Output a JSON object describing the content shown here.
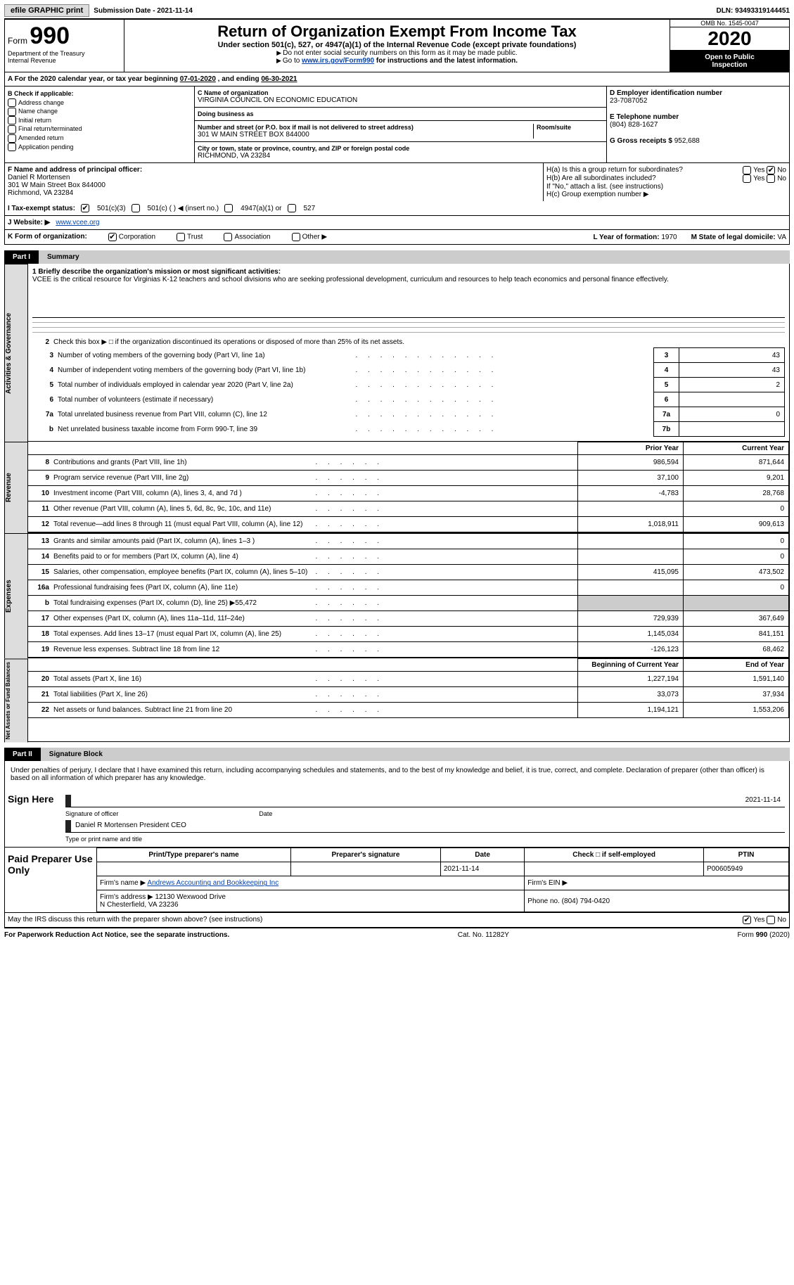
{
  "topbar": {
    "efile": "efile GRAPHIC print",
    "submission": "Submission Date - 2021-11-14",
    "dln": "DLN: 93493319144451"
  },
  "header": {
    "form_word": "Form",
    "form_no": "990",
    "dept1": "Department of the Treasury",
    "dept2": "Internal Revenue",
    "title": "Return of Organization Exempt From Income Tax",
    "subtitle": "Under section 501(c), 527, or 4947(a)(1) of the Internal Revenue Code (except private foundations)",
    "instr1": "Do not enter social security numbers on this form as it may be made public.",
    "instr2a": "Go to ",
    "instr2_link": "www.irs.gov/Form990",
    "instr2b": " for instructions and the latest information.",
    "omb": "OMB No. 1545-0047",
    "year": "2020",
    "open1": "Open to Public",
    "open2": "Inspection"
  },
  "period": {
    "label": "A For the 2020 calendar year, or tax year beginning ",
    "begin": "07-01-2020",
    "mid": " , and ending ",
    "end": "06-30-2021"
  },
  "boxB": {
    "title": "B Check if applicable:",
    "items": [
      "Address change",
      "Name change",
      "Initial return",
      "Final return/terminated",
      "Amended return",
      "Application pending"
    ]
  },
  "boxC": {
    "c_label": "C Name of organization",
    "org": "VIRGINIA COUNCIL ON ECONOMIC EDUCATION",
    "dba_label": "Doing business as",
    "dba": "",
    "addr_label": "Number and street (or P.O. box if mail is not delivered to street address)",
    "room_label": "Room/suite",
    "addr": "301 W MAIN STREET BOX 844000",
    "city_label": "City or town, state or province, country, and ZIP or foreign postal code",
    "city": "RICHMOND, VA  23284"
  },
  "boxD": {
    "label": "D Employer identification number",
    "ein": "23-7087052",
    "e_label": "E Telephone number",
    "phone": "(804) 828-1627",
    "g_label": "G Gross receipts $",
    "gross": "952,688"
  },
  "boxF": {
    "label": "F Name and address of principal officer:",
    "name": "Daniel R Mortensen",
    "addr1": "301 W Main Street Box 844000",
    "addr2": "Richmond, VA  23284"
  },
  "boxH": {
    "ha": "H(a)  Is this a group return for subordinates?",
    "hb": "H(b)  Are all subordinates included?",
    "hb_note": "If \"No,\" attach a list. (see instructions)",
    "hc": "H(c)  Group exemption number ▶",
    "yes": "Yes",
    "no": "No"
  },
  "taxI": {
    "label": "I  Tax-exempt status:",
    "opt1": "501(c)(3)",
    "opt2": "501(c) (  ) ◀ (insert no.)",
    "opt3": "4947(a)(1) or",
    "opt4": "527"
  },
  "webJ": {
    "label": "J  Website: ▶",
    "url": "www.vcee.org"
  },
  "rowK": {
    "label": "K Form of organization:",
    "opts": [
      "Corporation",
      "Trust",
      "Association",
      "Other ▶"
    ],
    "l_label": "L Year of formation:",
    "l_val": "1970",
    "m_label": "M State of legal domicile:",
    "m_val": "VA"
  },
  "part1": {
    "tag": "Part I",
    "title": "Summary",
    "q1_label": "1  Briefly describe the organization's mission or most significant activities:",
    "mission": "VCEE is the critical resource for Virginias K-12 teachers and school divisions who are seeking professional development, curriculum and resources to help teach economics and personal finance effectively.",
    "q2": "Check this box ▶ □ if the organization discontinued its operations or disposed of more than 25% of its net assets.",
    "rows_gov": [
      {
        "n": "3",
        "t": "Number of voting members of the governing body (Part VI, line 1a)",
        "b": "3",
        "v": "43"
      },
      {
        "n": "4",
        "t": "Number of independent voting members of the governing body (Part VI, line 1b)",
        "b": "4",
        "v": "43"
      },
      {
        "n": "5",
        "t": "Total number of individuals employed in calendar year 2020 (Part V, line 2a)",
        "b": "5",
        "v": "2"
      },
      {
        "n": "6",
        "t": "Total number of volunteers (estimate if necessary)",
        "b": "6",
        "v": ""
      },
      {
        "n": "7a",
        "t": "Total unrelated business revenue from Part VIII, column (C), line 12",
        "b": "7a",
        "v": "0"
      },
      {
        "n": "b",
        "t": "Net unrelated business taxable income from Form 990-T, line 39",
        "b": "7b",
        "v": ""
      }
    ],
    "hdr_prior": "Prior Year",
    "hdr_curr": "Current Year",
    "rows_rev": [
      {
        "n": "8",
        "t": "Contributions and grants (Part VIII, line 1h)",
        "p": "986,594",
        "c": "871,644"
      },
      {
        "n": "9",
        "t": "Program service revenue (Part VIII, line 2g)",
        "p": "37,100",
        "c": "9,201"
      },
      {
        "n": "10",
        "t": "Investment income (Part VIII, column (A), lines 3, 4, and 7d )",
        "p": "-4,783",
        "c": "28,768"
      },
      {
        "n": "11",
        "t": "Other revenue (Part VIII, column (A), lines 5, 6d, 8c, 9c, 10c, and 11e)",
        "p": "",
        "c": "0"
      },
      {
        "n": "12",
        "t": "Total revenue—add lines 8 through 11 (must equal Part VIII, column (A), line 12)",
        "p": "1,018,911",
        "c": "909,613"
      }
    ],
    "rows_exp": [
      {
        "n": "13",
        "t": "Grants and similar amounts paid (Part IX, column (A), lines 1–3 )",
        "p": "",
        "c": "0"
      },
      {
        "n": "14",
        "t": "Benefits paid to or for members (Part IX, column (A), line 4)",
        "p": "",
        "c": "0"
      },
      {
        "n": "15",
        "t": "Salaries, other compensation, employee benefits (Part IX, column (A), lines 5–10)",
        "p": "415,095",
        "c": "473,502"
      },
      {
        "n": "16a",
        "t": "Professional fundraising fees (Part IX, column (A), line 11e)",
        "p": "",
        "c": "0"
      },
      {
        "n": "b",
        "t": "Total fundraising expenses (Part IX, column (D), line 25) ▶55,472",
        "p": "GRAY",
        "c": "GRAY"
      },
      {
        "n": "17",
        "t": "Other expenses (Part IX, column (A), lines 11a–11d, 11f–24e)",
        "p": "729,939",
        "c": "367,649"
      },
      {
        "n": "18",
        "t": "Total expenses. Add lines 13–17 (must equal Part IX, column (A), line 25)",
        "p": "1,145,034",
        "c": "841,151"
      },
      {
        "n": "19",
        "t": "Revenue less expenses. Subtract line 18 from line 12",
        "p": "-126,123",
        "c": "68,462"
      }
    ],
    "hdr_beg": "Beginning of Current Year",
    "hdr_end": "End of Year",
    "rows_net": [
      {
        "n": "20",
        "t": "Total assets (Part X, line 16)",
        "p": "1,227,194",
        "c": "1,591,140"
      },
      {
        "n": "21",
        "t": "Total liabilities (Part X, line 26)",
        "p": "33,073",
        "c": "37,934"
      },
      {
        "n": "22",
        "t": "Net assets or fund balances. Subtract line 21 from line 20",
        "p": "1,194,121",
        "c": "1,553,206"
      }
    ],
    "sec_gov": "Activities & Governance",
    "sec_rev": "Revenue",
    "sec_exp": "Expenses",
    "sec_net": "Net Assets or Fund Balances"
  },
  "part2": {
    "tag": "Part II",
    "title": "Signature Block",
    "decl": "Under penalties of perjury, I declare that I have examined this return, including accompanying schedules and statements, and to the best of my knowledge and belief, it is true, correct, and complete. Declaration of preparer (other than officer) is based on all information of which preparer has any knowledge.",
    "sign_here": "Sign Here",
    "sig_of": "Signature of officer",
    "sig_date": "2021-11-14",
    "date_lbl": "Date",
    "officer": "Daniel R Mortensen  President CEO",
    "officer_lbl": "Type or print name and title",
    "paid": "Paid Preparer Use Only",
    "prep_hdrs": [
      "Print/Type preparer's name",
      "Preparer's signature",
      "Date",
      "Check □ if self-employed",
      "PTIN"
    ],
    "prep_vals": [
      "",
      "",
      "2021-11-14",
      "",
      "P00605949"
    ],
    "firm_name_lbl": "Firm's name  ▶",
    "firm_name": "Andrews Accounting and Bookkeeping Inc",
    "firm_ein_lbl": "Firm's EIN ▶",
    "firm_ein": "",
    "firm_addr_lbl": "Firm's address ▶",
    "firm_addr1": "12130 Wexwood Drive",
    "firm_addr2": "N Chesterfield, VA  23236",
    "firm_phone_lbl": "Phone no.",
    "firm_phone": "(804) 794-0420",
    "discuss": "May the IRS discuss this return with the preparer shown above? (see instructions)",
    "yes": "Yes",
    "no": "No"
  },
  "footer": {
    "pra": "For Paperwork Reduction Act Notice, see the separate instructions.",
    "cat": "Cat. No. 11282Y",
    "form": "Form 990 (2020)"
  },
  "colors": {
    "link": "#0645ad",
    "sidebar": "#dddddd",
    "black": "#000000"
  }
}
